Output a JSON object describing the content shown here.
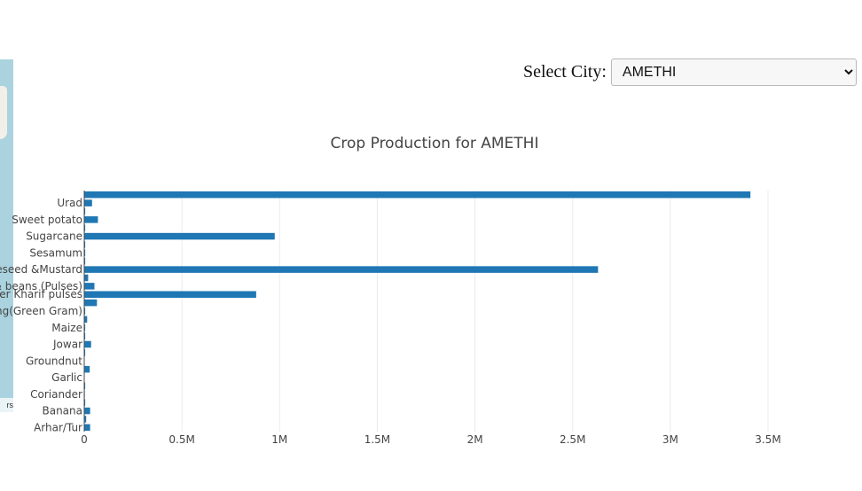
{
  "map": {
    "attribution": "rs"
  },
  "selector": {
    "label": "Select City:",
    "selected": "AMETHI"
  },
  "chart_data": {
    "type": "bar",
    "orientation": "horizontal",
    "title": "Crop Production for AMETHI",
    "xlabel": "",
    "ylabel": "",
    "xlim": [
      0,
      3.5
    ],
    "xtick_values": [
      0,
      0.5,
      1,
      1.5,
      2,
      2.5,
      3,
      3.5
    ],
    "xtick_labels": [
      "0",
      "0.5M",
      "1M",
      "1.5M",
      "2M",
      "2.5M",
      "3M",
      "3.5M"
    ],
    "value_unit": "M",
    "categories": [
      "Arhar/Tur",
      "",
      "Banana",
      "",
      "Coriander",
      "",
      "Garlic",
      "",
      "Groundnut",
      "",
      "Jowar",
      "",
      "Maize",
      "",
      "Moong(Green Gram)",
      "",
      "Other Kharif pulses",
      "Peas & beans (Pulses)",
      "",
      "Rapeseed &Mustard",
      "",
      "Sesamum",
      "",
      "Sugarcane",
      "",
      "Sweet potato",
      "",
      "Urad",
      ""
    ],
    "values": [
      0.03,
      0.01,
      0.03,
      0.005,
      0.003,
      0.005,
      0.002,
      0.028,
      0.002,
      0.005,
      0.035,
      0.005,
      0.005,
      0.015,
      0.005,
      0.065,
      0.88,
      0.052,
      0.02,
      2.63,
      0.005,
      0.005,
      0.005,
      0.975,
      0.005,
      0.07,
      0.005,
      0.04,
      3.41
    ],
    "grid": true,
    "bar_color": "#1f77b4"
  }
}
